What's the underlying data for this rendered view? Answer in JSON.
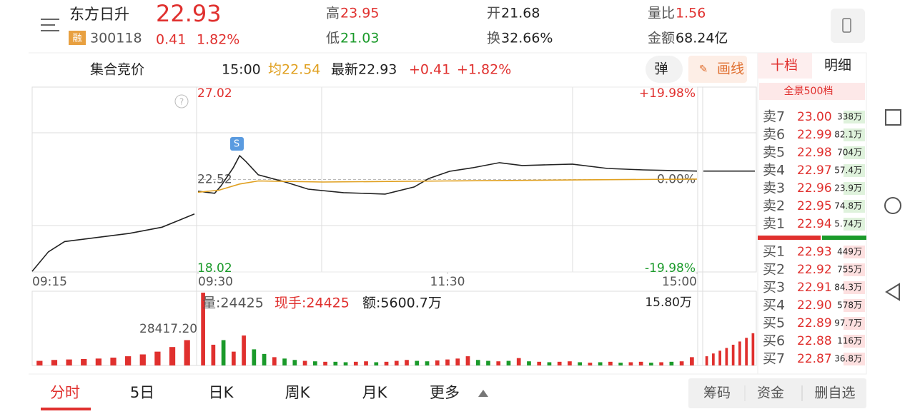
{
  "header": {
    "name": "东方日升",
    "badge": "融",
    "code": "300118",
    "price": "22.93",
    "change": "0.41",
    "change_pct": "1.82%",
    "stats": [
      {
        "label": "高",
        "value": "23.95"
      },
      {
        "label": "低",
        "value": "21.03"
      },
      {
        "label": "开",
        "value": "21.68"
      },
      {
        "label": "换",
        "value": "32.66%"
      },
      {
        "label": "量比",
        "value": "1.56"
      },
      {
        "label": "金额",
        "value": "68.24亿"
      }
    ]
  },
  "quote_bar": {
    "mode": "集合竞价",
    "time": "15:00",
    "avg": "均22.54",
    "latest": "最新22.93",
    "change": "+0.41",
    "change_pct": "+1.82%"
  },
  "tools": {
    "pop": "弹",
    "draw": "画线"
  },
  "book": {
    "tabs": [
      "十档",
      "明细"
    ],
    "title": "全景500档",
    "asks": [
      {
        "label": "卖7",
        "price": "23.00",
        "volume": "338万"
      },
      {
        "label": "卖6",
        "price": "22.99",
        "volume": "82.1万"
      },
      {
        "label": "卖5",
        "price": "22.98",
        "volume": "704万"
      },
      {
        "label": "卖4",
        "price": "22.97",
        "volume": "57.4万"
      },
      {
        "label": "卖3",
        "price": "22.96",
        "volume": "23.9万"
      },
      {
        "label": "卖2",
        "price": "22.95",
        "volume": "74.8万"
      },
      {
        "label": "卖1",
        "price": "22.94",
        "volume": "5.74万"
      }
    ],
    "bids": [
      {
        "label": "买1",
        "price": "22.93",
        "volume": "449万"
      },
      {
        "label": "买2",
        "price": "22.92",
        "volume": "755万"
      },
      {
        "label": "买3",
        "price": "22.91",
        "volume": "84.3万"
      },
      {
        "label": "买4",
        "price": "22.90",
        "volume": "578万"
      },
      {
        "label": "买5",
        "price": "22.89",
        "volume": "97.7万"
      },
      {
        "label": "买6",
        "price": "22.88",
        "volume": "116万"
      },
      {
        "label": "买7",
        "price": "22.87",
        "volume": "36.8万"
      }
    ]
  },
  "chart_data": {
    "type": "line",
    "ylim": [
      18.02,
      27.02
    ],
    "yticks": [
      18.02,
      22.52,
      27.02
    ],
    "pct_ticks": [
      {
        "value": 18.02,
        "label": "-19.98%"
      },
      {
        "value": 22.52,
        "label": "0.00%"
      },
      {
        "value": 27.02,
        "label": "+19.98%"
      }
    ],
    "xlim": [
      0,
      240
    ],
    "xticks": [
      {
        "value": 0,
        "label": "09:30"
      },
      {
        "value": 120,
        "label": "11:30"
      },
      {
        "value": 240,
        "label": "15:00"
      }
    ],
    "pre_xlim": [
      0,
      10
    ],
    "pre_xticks": [
      {
        "value": 0,
        "label": "09:15"
      }
    ],
    "series": [
      {
        "name": "price",
        "color": "#222222",
        "x": [
          0,
          8,
          11,
          17,
          20,
          23,
          29,
          42,
          53,
          70,
          90,
          104,
          111,
          121,
          132,
          145,
          156,
          180,
          197,
          214,
          240
        ],
        "values": [
          21.95,
          21.85,
          22.2,
          23.1,
          23.68,
          23.4,
          22.75,
          22.4,
          22.05,
          21.88,
          21.81,
          22.16,
          22.57,
          22.92,
          23.09,
          23.34,
          23.2,
          23.27,
          23.06,
          22.99,
          22.93
        ]
      },
      {
        "name": "average",
        "color": "#e0a020",
        "x": [
          0,
          10,
          20,
          29,
          60,
          120,
          180,
          240
        ],
        "values": [
          21.9,
          22.0,
          22.3,
          22.45,
          22.4,
          22.45,
          22.5,
          22.54
        ]
      }
    ],
    "premarket": {
      "color": "#222222",
      "x": [
        0,
        1,
        2,
        4,
        6,
        8,
        10
      ],
      "values": [
        18.05,
        19.0,
        19.5,
        19.7,
        19.9,
        20.2,
        20.84
      ]
    },
    "after_hours": [
      22.93,
      22.93
    ],
    "volume_ylim": [
      0,
      15.8
    ],
    "volume_ticks": [
      {
        "value": 15.8,
        "label": "15.80万"
      }
    ],
    "volume_label": "28417.20",
    "volume_info": {
      "volume": "量:24425",
      "hand": "现手:24425",
      "amount": "额:5600.7万"
    },
    "up_color": "#e0302e",
    "down_color": "#1a9a2a",
    "volumes": [
      15.8,
      4.5,
      5.5,
      3.0,
      6.5,
      3.5,
      2.5,
      1.8,
      1.5,
      1.2,
      1.0,
      0.9,
      0.8,
      0.8,
      0.7,
      0.8,
      0.9,
      0.7,
      0.8,
      1.0,
      1.2,
      1.0,
      0.9,
      1.1,
      1.3,
      1.5,
      2.0,
      1.2,
      1.0,
      0.9,
      1.0,
      1.6,
      0.9,
      0.8,
      0.7,
      0.8,
      0.9,
      0.7,
      0.6,
      0.7,
      0.8,
      0.6,
      0.7,
      0.8,
      0.6,
      0.7,
      0.8,
      0.9,
      1.8
    ],
    "volume_rising": [
      true,
      true,
      false,
      true,
      true,
      false,
      false,
      true,
      false,
      false,
      true,
      false,
      true,
      false,
      false,
      true,
      true,
      false,
      true,
      true,
      true,
      false,
      false,
      true,
      true,
      true,
      true,
      false,
      false,
      true,
      false,
      true,
      false,
      true,
      false,
      true,
      true,
      false,
      true,
      false,
      true,
      false,
      true,
      true,
      false,
      true,
      false,
      true,
      true
    ],
    "pre_volumes": [
      1.0,
      1.2,
      1.3,
      1.4,
      1.5,
      1.7,
      2.0,
      2.4,
      3.0,
      4.0,
      5.5
    ],
    "after_volumes": [
      2.0,
      2.6,
      3.2,
      3.8,
      4.5,
      5.2,
      6.0,
      7.0
    ]
  },
  "tabs": [
    "分时",
    "5日",
    "日K",
    "周K",
    "月K",
    "更多"
  ],
  "actions": [
    "筹码",
    "资金",
    "删自选"
  ]
}
